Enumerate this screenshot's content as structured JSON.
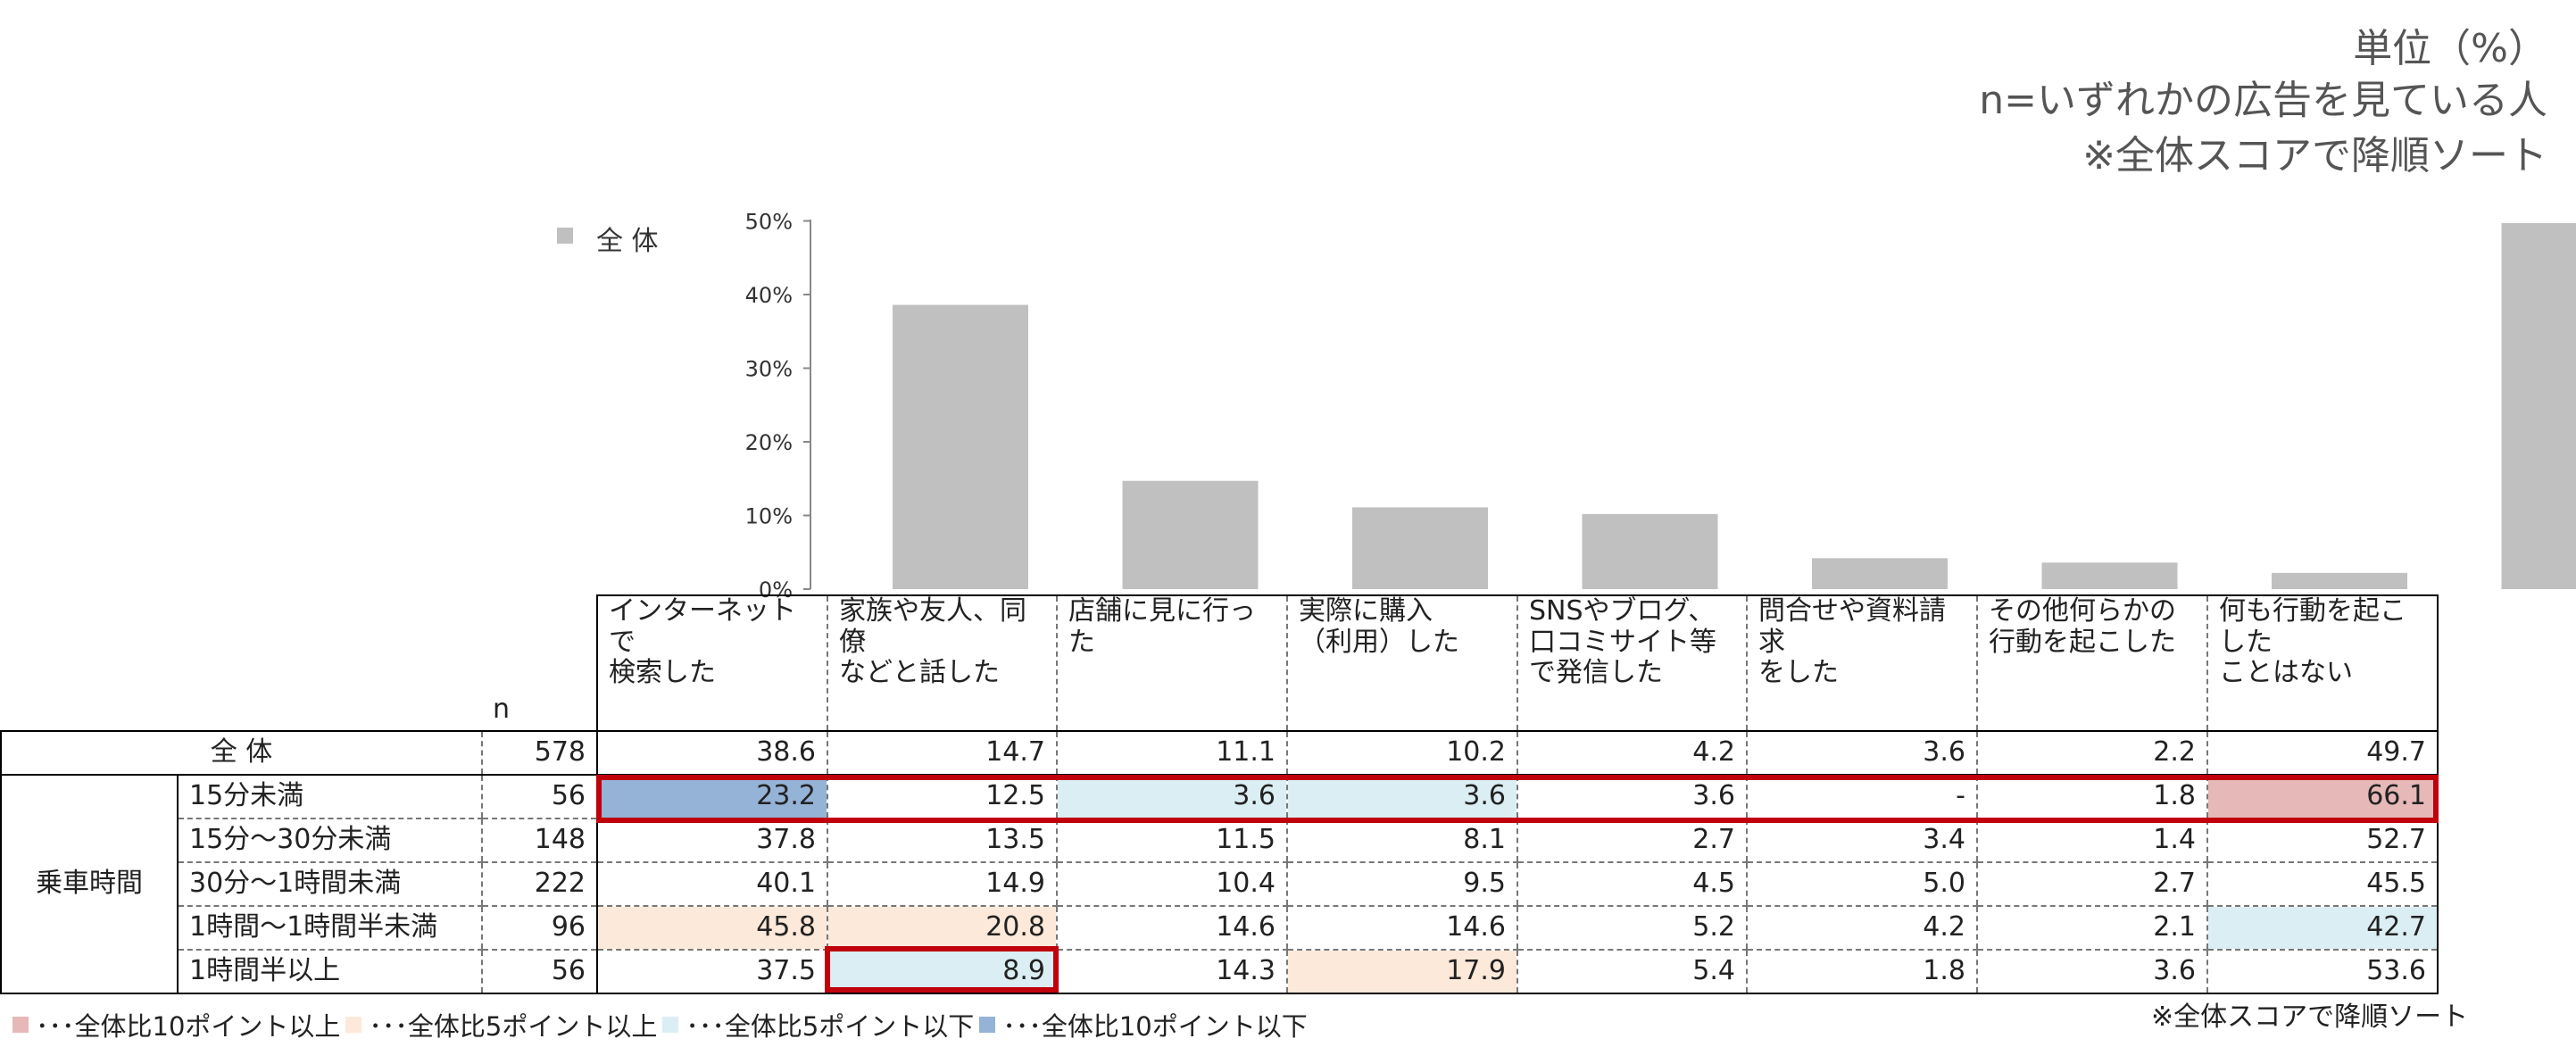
{
  "notes": {
    "unit": "単位（%）",
    "base": "n=いずれかの広告を見ている人",
    "sort": "※全体スコアで降順ソート"
  },
  "colors": {
    "bar": "#c0c0c0",
    "plus10": "#e6b8b7",
    "plus5": "#fde9d9",
    "minus5": "#dbeef3",
    "minus10": "#95b3d7",
    "highlight": "#c0000b"
  },
  "chart_data": {
    "type": "bar",
    "legend": "全 体",
    "categories": [
      "インターネットで検索した",
      "家族や友人、同僚などと話した",
      "店舗に見に行った",
      "実際に購入（利用）した",
      "SNSやブログ、口コミサイト等で発信した",
      "問合せや資料請求をした",
      "その他何らかの行動を起こした",
      "何も行動を起こしたことはない"
    ],
    "values": [
      38.6,
      14.7,
      11.1,
      10.2,
      4.2,
      3.6,
      2.2,
      49.7
    ],
    "ylim": [
      0,
      50
    ],
    "yticks": [
      "0%",
      "10%",
      "20%",
      "30%",
      "40%",
      "50%"
    ],
    "grid": false,
    "legend_position": "top-left"
  },
  "table": {
    "n_header": "n",
    "headers": [
      "インターネットで\n検索した",
      "家族や友人、同僚\nなどと話した",
      "店舗に見に行った",
      "実際に購入\n（利用）した",
      "SNSやブログ、\n口コミサイト等\nで発信した",
      "問合せや資料請求\nをした",
      "その他何らかの\n行動を起こした",
      "何も行動を起こした\nことはない"
    ],
    "total": {
      "label": "全 体",
      "n": "578",
      "values": [
        "38.6",
        "14.7",
        "11.1",
        "10.2",
        "4.2",
        "3.6",
        "2.2",
        "49.7"
      ]
    },
    "group_label": "乗車時間",
    "rows": [
      {
        "label": "15分未満",
        "n": "56",
        "values": [
          "23.2",
          "12.5",
          "3.6",
          "3.6",
          "3.6",
          "-",
          "1.8",
          "66.1"
        ],
        "shade": [
          "minus10",
          "",
          "minus5",
          "minus5",
          "",
          "",
          "",
          "plus10"
        ]
      },
      {
        "label": "15分～30分未満",
        "n": "148",
        "values": [
          "37.8",
          "13.5",
          "11.5",
          "8.1",
          "2.7",
          "3.4",
          "1.4",
          "52.7"
        ],
        "shade": [
          "",
          "",
          "",
          "",
          "",
          "",
          "",
          ""
        ]
      },
      {
        "label": "30分～1時間未満",
        "n": "222",
        "values": [
          "40.1",
          "14.9",
          "10.4",
          "9.5",
          "4.5",
          "5.0",
          "2.7",
          "45.5"
        ],
        "shade": [
          "",
          "",
          "",
          "",
          "",
          "",
          "",
          ""
        ]
      },
      {
        "label": "1時間～1時間半未満",
        "n": "96",
        "values": [
          "45.8",
          "20.8",
          "14.6",
          "14.6",
          "5.2",
          "4.2",
          "2.1",
          "42.7"
        ],
        "shade": [
          "plus5",
          "plus5",
          "",
          "",
          "",
          "",
          "",
          "minus5"
        ]
      },
      {
        "label": "1時間半以上",
        "n": "56",
        "values": [
          "37.5",
          "8.9",
          "14.3",
          "17.9",
          "5.4",
          "1.8",
          "3.6",
          "53.6"
        ],
        "shade": [
          "",
          "minus5",
          "",
          "plus5",
          "",
          "",
          "",
          ""
        ]
      }
    ]
  },
  "legend": [
    {
      "color": "plus10",
      "text": "･･･全体比10ポイント以上"
    },
    {
      "color": "plus5",
      "text": "･･･全体比5ポイント以上"
    },
    {
      "color": "minus5",
      "text": "･･･全体比5ポイント以下"
    },
    {
      "color": "minus10",
      "text": "･･･全体比10ポイント以下"
    }
  ],
  "bottom_note": "※全体スコアで降順ソート"
}
